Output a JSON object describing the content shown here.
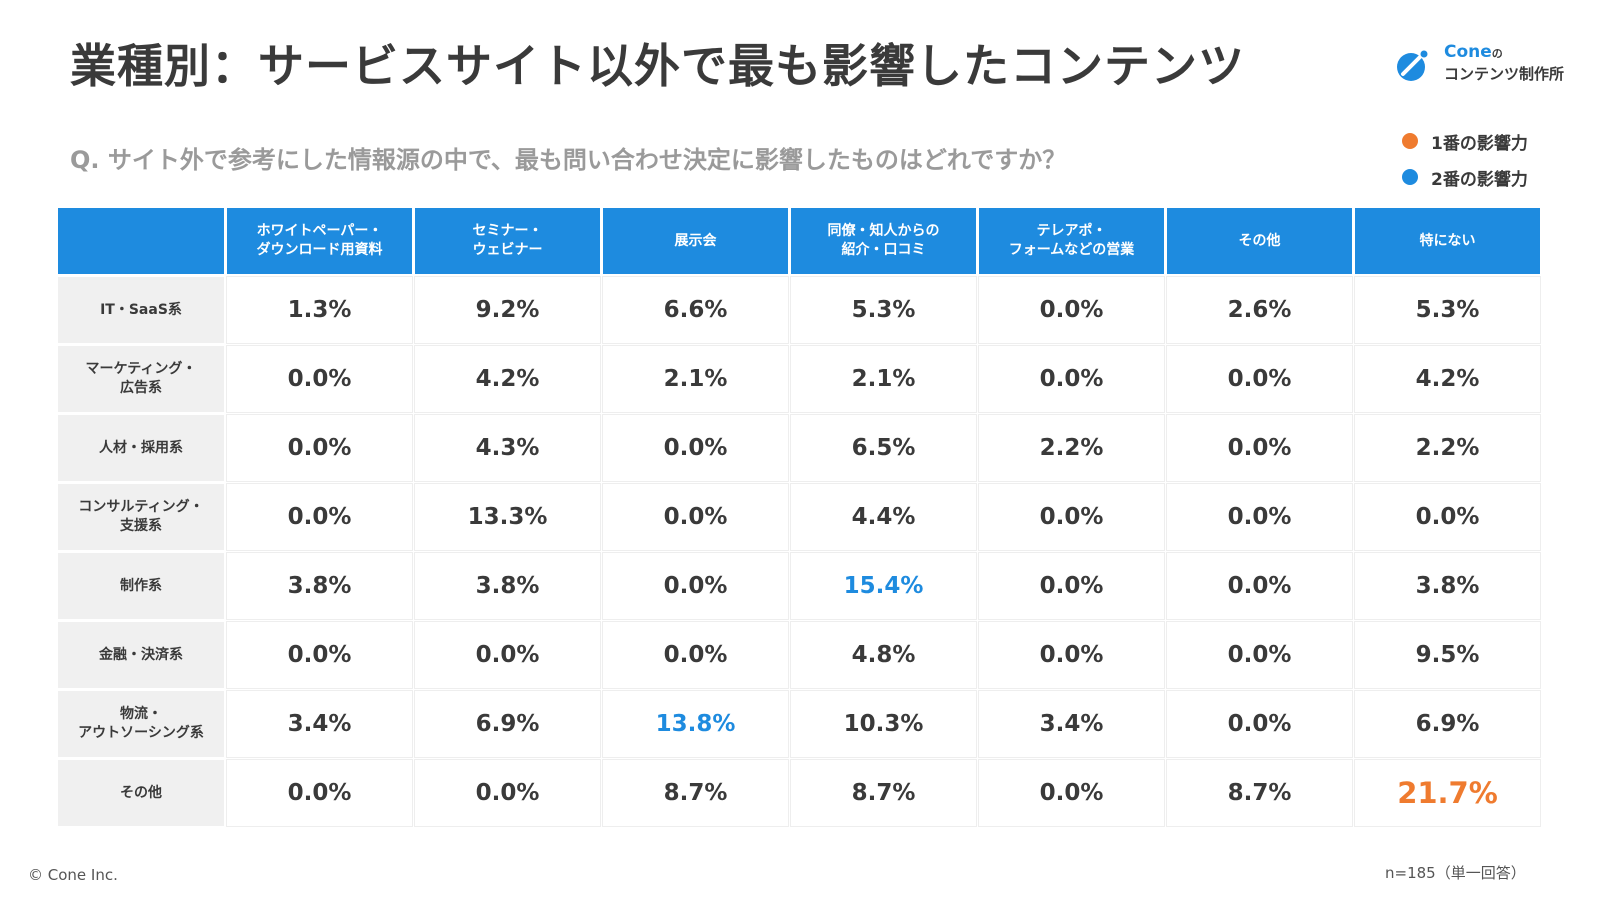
{
  "title": "業種別：サービスサイト以外で最も影響したコンテンツ",
  "question": "Q. サイト外で参考にした情報源の中で、最も問い合わせ決定に影響したものはどれですか？",
  "logo": {
    "brand": "Cone",
    "brand_suffix": "の",
    "sub": "コンテンツ制作所",
    "icon": "cone-logo-icon"
  },
  "legend": [
    {
      "label": "1番の影響力",
      "color": "#ef7b2f"
    },
    {
      "label": "2番の影響力",
      "color": "#1e8bdf"
    }
  ],
  "colors": {
    "header": "#1e8bdf",
    "first": "#ef7b2f",
    "second": "#1e8bdf",
    "row_header": "#f0f0f0"
  },
  "chart_data": {
    "type": "table",
    "columns": [
      "ホワイトペーパー・\nダウンロード用資料",
      "セミナー・\nウェビナー",
      "展示会",
      "同僚・知人からの\n紹介・口コミ",
      "テレアポ・\nフォームなどの営業",
      "その他",
      "特にない"
    ],
    "rows": [
      {
        "label": "IT・SaaS系",
        "values": [
          "1.3%",
          "9.2%",
          "6.6%",
          "5.3%",
          "0.0%",
          "2.6%",
          "5.3%"
        ]
      },
      {
        "label": "マーケティング・\n広告系",
        "values": [
          "0.0%",
          "4.2%",
          "2.1%",
          "2.1%",
          "0.0%",
          "0.0%",
          "4.2%"
        ]
      },
      {
        "label": "人材・採用系",
        "values": [
          "0.0%",
          "4.3%",
          "0.0%",
          "6.5%",
          "2.2%",
          "0.0%",
          "2.2%"
        ]
      },
      {
        "label": "コンサルティング・\n支援系",
        "values": [
          "0.0%",
          "13.3%",
          "0.0%",
          "4.4%",
          "0.0%",
          "0.0%",
          "0.0%"
        ]
      },
      {
        "label": "制作系",
        "values": [
          "3.8%",
          "3.8%",
          "0.0%",
          "15.4%",
          "0.0%",
          "0.0%",
          "3.8%"
        ]
      },
      {
        "label": "金融・決済系",
        "values": [
          "0.0%",
          "0.0%",
          "0.0%",
          "4.8%",
          "0.0%",
          "0.0%",
          "9.5%"
        ]
      },
      {
        "label": "物流・\nアウトソーシング系",
        "values": [
          "3.4%",
          "6.9%",
          "13.8%",
          "10.3%",
          "3.4%",
          "0.0%",
          "6.9%"
        ]
      },
      {
        "label": "その他",
        "values": [
          "0.0%",
          "0.0%",
          "8.7%",
          "8.7%",
          "0.0%",
          "8.7%",
          "21.7%"
        ]
      }
    ],
    "highlights": [
      {
        "row": 7,
        "col": 6,
        "rank": 1
      },
      {
        "row": 4,
        "col": 3,
        "rank": 2
      },
      {
        "row": 6,
        "col": 2,
        "rank": 2
      }
    ]
  },
  "footer": {
    "copyright": "© Cone Inc.",
    "sample": "n=185（単一回答）"
  }
}
